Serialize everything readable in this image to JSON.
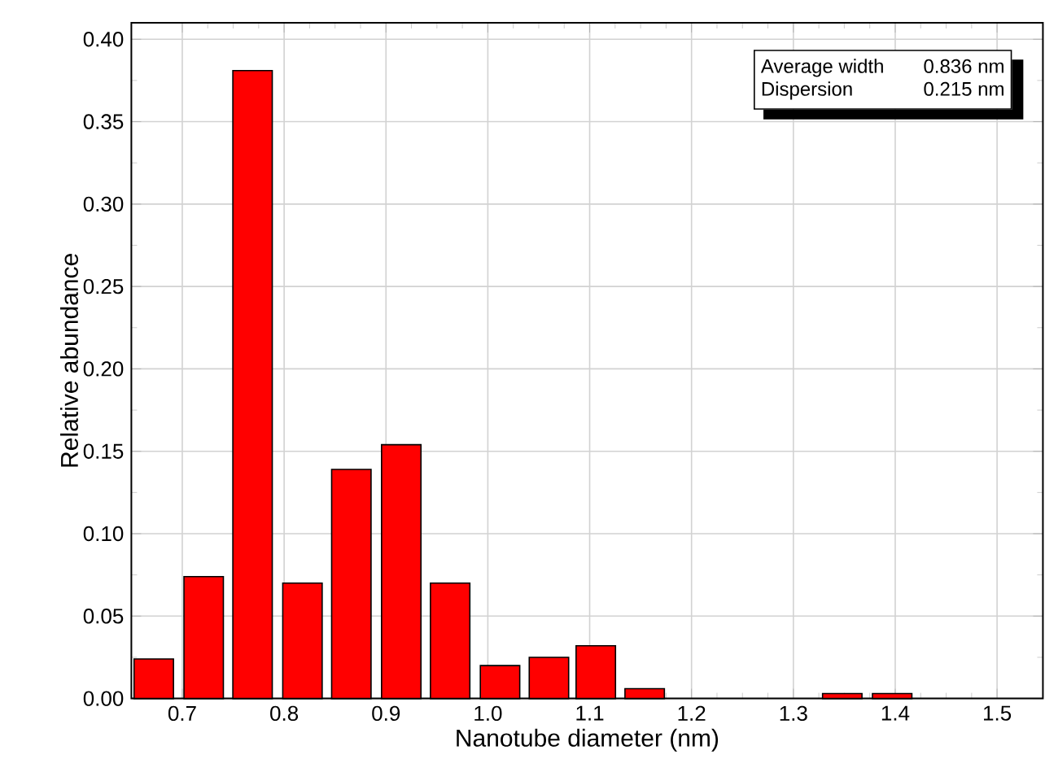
{
  "chart_data": {
    "type": "bar",
    "xlabel": "Nanotube diameter (nm)",
    "ylabel": "Relative abundance",
    "x": [
      0.672,
      0.721,
      0.769,
      0.818,
      0.866,
      0.915,
      0.963,
      1.012,
      1.06,
      1.106,
      1.154,
      1.348,
      1.397
    ],
    "values": [
      0.024,
      0.074,
      0.381,
      0.07,
      0.139,
      0.154,
      0.07,
      0.02,
      0.025,
      0.032,
      0.006,
      0.003,
      0.003
    ],
    "color": "#ff0000",
    "xlim": [
      0.65,
      1.545
    ],
    "ylim": [
      0,
      0.41
    ],
    "xticks": [
      {
        "value": 0.7,
        "label": "0.7"
      },
      {
        "value": 0.8,
        "label": "0.8"
      },
      {
        "value": 0.9,
        "label": "0.9"
      },
      {
        "value": 1.0,
        "label": "1.0"
      },
      {
        "value": 1.1,
        "label": "1.1"
      },
      {
        "value": 1.2,
        "label": "1.2"
      },
      {
        "value": 1.3,
        "label": "1.3"
      },
      {
        "value": 1.4,
        "label": "1.4"
      },
      {
        "value": 1.5,
        "label": "1.5"
      }
    ],
    "yticks": [
      {
        "value": 0,
        "label": "0.00"
      },
      {
        "value": 0.05,
        "label": "0.05"
      },
      {
        "value": 0.1,
        "label": "0.10"
      },
      {
        "value": 0.15,
        "label": "0.15"
      },
      {
        "value": 0.2,
        "label": "0.20"
      },
      {
        "value": 0.25,
        "label": "0.25"
      },
      {
        "value": 0.3,
        "label": "0.30"
      },
      {
        "value": 0.35,
        "label": "0.35"
      },
      {
        "value": 0.4,
        "label": "0.40"
      }
    ],
    "grid": true,
    "annotations": [
      "Average width",
      "0.836 nm",
      "Dispersion",
      "0.215 nm"
    ]
  }
}
